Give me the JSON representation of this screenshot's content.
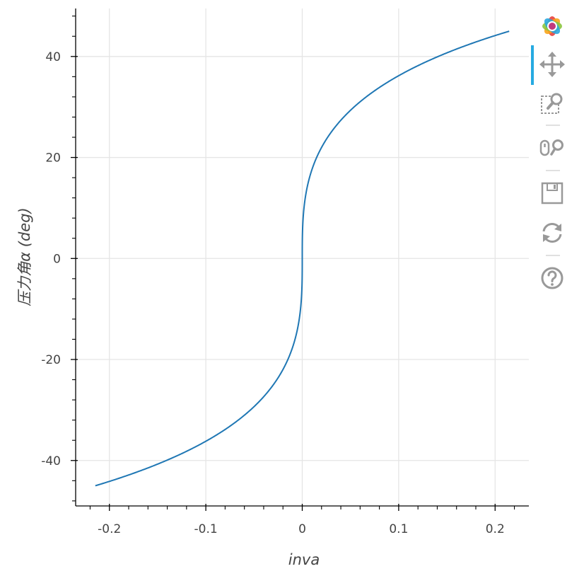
{
  "chart_data": {
    "type": "line",
    "title": "",
    "xlabel": "inva",
    "ylabel": "压力角α (deg)",
    "xlim": [
      -0.235,
      0.235
    ],
    "ylim": [
      -49,
      49.5
    ],
    "xticks": [
      -0.2,
      -0.1,
      0,
      0.1,
      0.2
    ],
    "xtick_labels": [
      "-0.2",
      "-0.1",
      "0",
      "0.1",
      "0.2"
    ],
    "yticks": [
      -40,
      -20,
      0,
      20,
      40
    ],
    "ytick_labels": [
      "-40",
      "-20",
      "0",
      "20",
      "40"
    ],
    "grid": true,
    "series": [
      {
        "color": "#1f77b4",
        "function": "involute: x = tan(a) - a, y = a in degrees",
        "alpha_range_deg": [
          -45,
          45
        ]
      }
    ]
  },
  "toolbar": {
    "tools": [
      {
        "name": "bokeh-logo-icon",
        "active": false
      },
      {
        "name": "pan-icon",
        "active": true
      },
      {
        "name": "box-zoom-icon",
        "active": false
      },
      {
        "name": "wheel-zoom-icon",
        "active": false
      },
      {
        "name": "save-icon",
        "active": false
      },
      {
        "name": "reset-icon",
        "active": false
      },
      {
        "name": "help-icon",
        "active": false
      }
    ]
  }
}
